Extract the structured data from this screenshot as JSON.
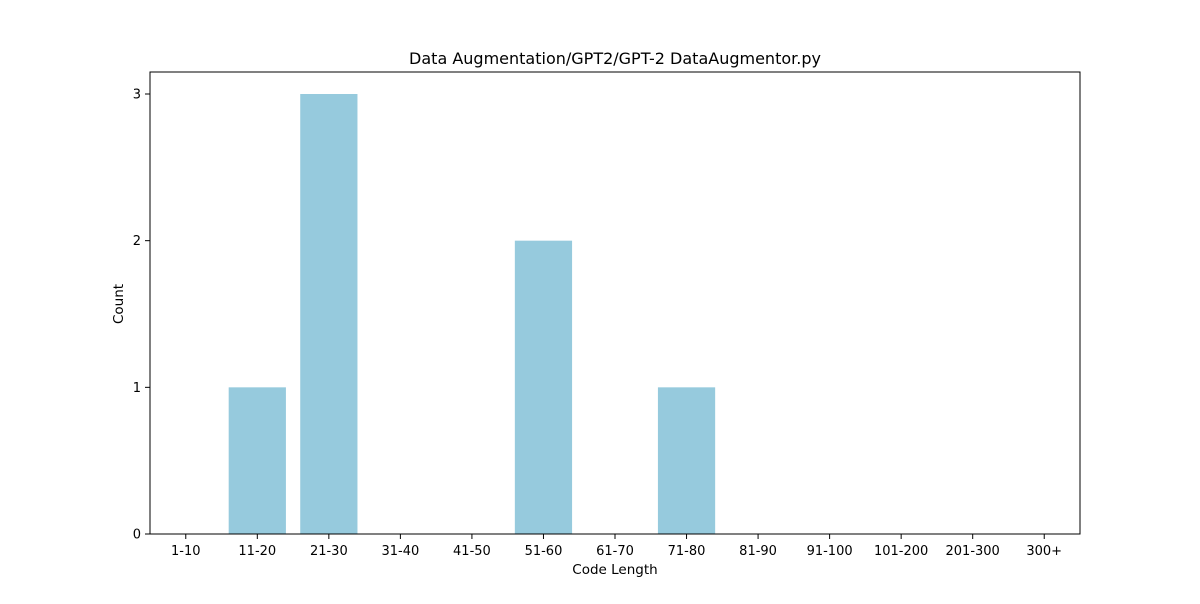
{
  "chart_data": {
    "type": "bar",
    "title": "Data Augmentation/GPT2/GPT-2 DataAugmentor.py",
    "xlabel": "Code Length",
    "ylabel": "Count",
    "categories": [
      "1-10",
      "11-20",
      "21-30",
      "31-40",
      "41-50",
      "51-60",
      "61-70",
      "71-80",
      "81-90",
      "91-100",
      "101-200",
      "201-300",
      "300+"
    ],
    "values": [
      0,
      1,
      3,
      0,
      0,
      2,
      0,
      1,
      0,
      0,
      0,
      0,
      0
    ],
    "ylim": [
      0,
      3.15
    ],
    "yticks": [
      0,
      1,
      2,
      3
    ],
    "grid": false,
    "legend": "none",
    "bar_color": "#96cadd"
  }
}
